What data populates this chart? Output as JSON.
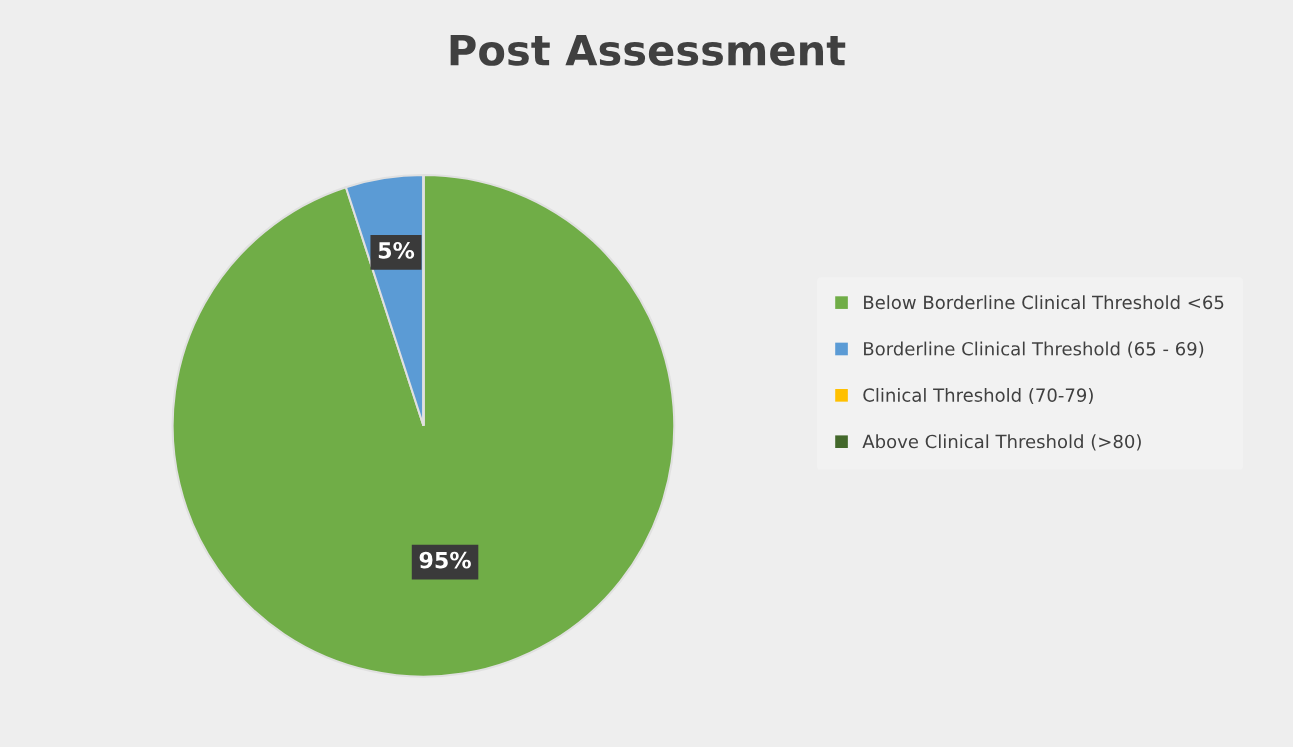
{
  "chart_data": {
    "type": "pie",
    "title": "Post Assessment",
    "categories": [
      "Below Borderline Clinical Threshold <65",
      "Borderline Clinical Threshold (65 - 69)",
      "Clinical Threshold (70-79)",
      "Above Clinical Threshold (>80)"
    ],
    "values": [
      95,
      5,
      0,
      0
    ],
    "colors": [
      "#70ad47",
      "#5b9bd5",
      "#ffc000",
      "#43682b"
    ],
    "value_labels": [
      "95%",
      "5%",
      null,
      null
    ],
    "legend": "right"
  }
}
